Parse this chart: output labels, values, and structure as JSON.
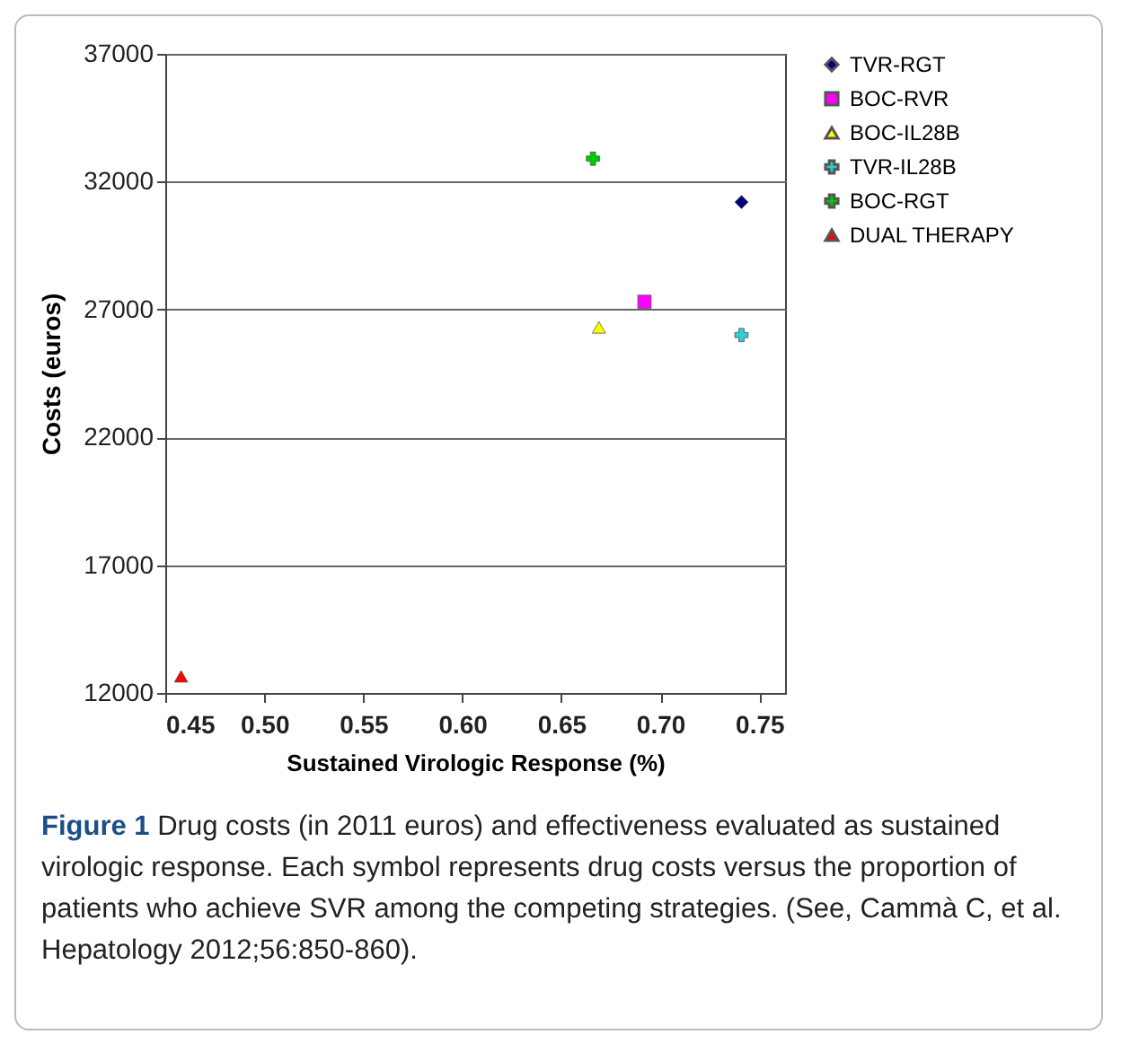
{
  "chart_data": {
    "type": "scatter",
    "xlabel": "Sustained Virologic Response (%)",
    "ylabel": "Costs (euros)",
    "xlim": [
      0.45,
      0.763
    ],
    "xticks": [
      {
        "value": 0.45,
        "label": "0.45"
      },
      {
        "value": 0.5,
        "label": "0.50"
      },
      {
        "value": 0.55,
        "label": "0.55"
      },
      {
        "value": 0.6,
        "label": "0.60"
      },
      {
        "value": 0.65,
        "label": "0.65"
      },
      {
        "value": 0.7,
        "label": "0.70"
      },
      {
        "value": 0.75,
        "label": "0.75"
      }
    ],
    "ylim": [
      12000,
      37000
    ],
    "yticks": [
      12000,
      17000,
      22000,
      27000,
      32000,
      37000
    ],
    "grid": "y",
    "legend": "right",
    "series": [
      {
        "name": "TVR-RGT",
        "color": "#000080",
        "marker": "diamond",
        "x": [
          0.741
        ],
        "values": [
          31200
        ]
      },
      {
        "name": "BOC-RVR",
        "color": "#ff00ff",
        "marker": "square",
        "x": [
          0.692
        ],
        "values": [
          27300
        ]
      },
      {
        "name": "BOC-IL28B",
        "color": "#ffff00",
        "marker": "triangle",
        "x": [
          0.669
        ],
        "values": [
          26300
        ]
      },
      {
        "name": "TVR-IL28B",
        "color": "#33cccc",
        "marker": "cross",
        "x": [
          0.741
        ],
        "values": [
          26000
        ]
      },
      {
        "name": "BOC-RGT",
        "color": "#00cc00",
        "marker": "cross",
        "x": [
          0.666
        ],
        "values": [
          32900
        ]
      },
      {
        "name": "DUAL THERAPY",
        "color": "#ff0000",
        "marker": "triangle",
        "x": [
          0.458
        ],
        "values": [
          12650
        ]
      }
    ],
    "annotations": [
      "Figure 1",
      "Drug costs (in 2011 euros) and effectiveness evaluated as sustained virologic response. Each symbol represents drug costs versus the proportion of patients who achieve SVR among the competing strategies. (See, Cammà C, et al. Hepatology 2012;56:850-860)."
    ]
  }
}
